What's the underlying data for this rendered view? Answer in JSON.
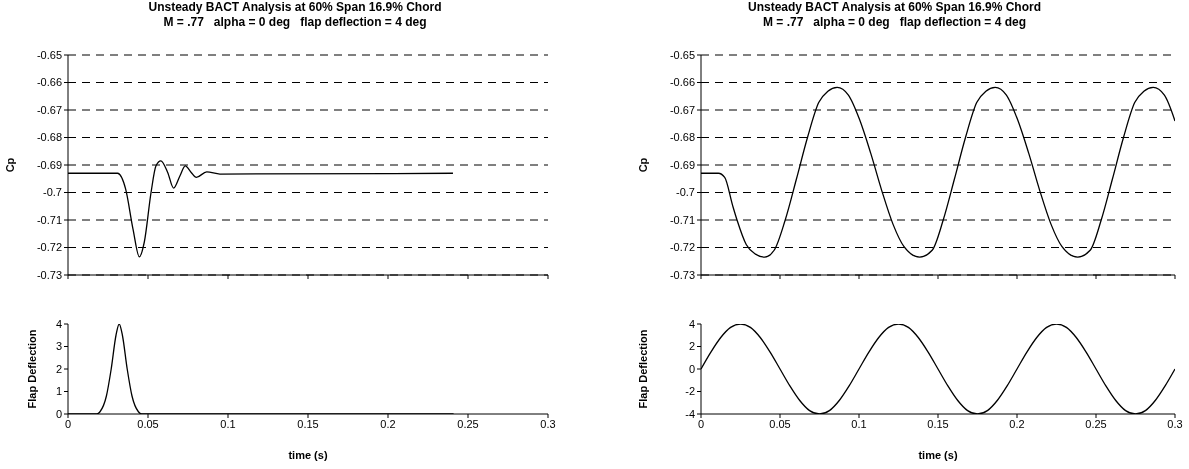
{
  "chart_data": [
    {
      "type": "line",
      "title": "Unsteady BACT Analysis at 60% Span 16.9% Chord",
      "subtitle": "M = .77   alpha = 0 deg   flap deflection = 4 deg",
      "ylabel": "Cp",
      "xlim": [
        0,
        0.3
      ],
      "xticks": [
        0,
        0.05,
        0.1,
        0.15,
        0.2,
        0.25,
        0.3
      ],
      "ylim": [
        -0.73,
        -0.65
      ],
      "yticks": [
        -0.73,
        -0.72,
        -0.71,
        -0.7,
        -0.69,
        -0.68,
        -0.67,
        -0.66,
        -0.65
      ],
      "grid": "y",
      "tick_labels": "y",
      "series": [
        {
          "color": "#000000",
          "x": [
            0,
            0.031,
            0.036,
            0.0406,
            0.0446,
            0.0477,
            0.0519,
            0.055,
            0.058,
            0.0623,
            0.066,
            0.07,
            0.0733,
            0.077,
            0.0802,
            0.0867,
            0.095,
            0.2406
          ],
          "values": [
            -0.693,
            -0.693,
            -0.6987,
            -0.7132,
            -0.7234,
            -0.718,
            -0.7,
            -0.6903,
            -0.6885,
            -0.6927,
            -0.6984,
            -0.6939,
            -0.6903,
            -0.6927,
            -0.6945,
            -0.6925,
            -0.6933,
            -0.693
          ]
        }
      ]
    },
    {
      "type": "line",
      "title": "Unsteady BACT Analysis at 60% Span 16.9% Chord",
      "subtitle": "M = .77   alpha = 0 deg   flap deflection = 4 deg",
      "ylabel": "Cp",
      "xlim": [
        0,
        0.3
      ],
      "xticks": [
        0,
        0.05,
        0.1,
        0.15,
        0.2,
        0.25,
        0.3
      ],
      "ylim": [
        -0.73,
        -0.65
      ],
      "yticks": [
        -0.73,
        -0.72,
        -0.71,
        -0.7,
        -0.69,
        -0.68,
        -0.67,
        -0.66,
        -0.65
      ],
      "grid": "y",
      "tick_labels": "y",
      "series": [
        {
          "color": "#000000",
          "x": [
            0,
            0.011,
            0.015,
            0.02,
            0.0228,
            0.0287,
            0.0345,
            0.0403,
            0.0463,
            0.0533,
            0.0604,
            0.0674,
            0.0745,
            0.0803,
            0.0862,
            0.0933,
            0.1003,
            0.1074,
            0.1144,
            0.1215,
            0.1285,
            0.1384,
            0.1463,
            0.1533,
            0.1604,
            0.1674,
            0.1745,
            0.1803,
            0.1862,
            0.1933,
            0.2003,
            0.2074,
            0.2144,
            0.2215,
            0.2285,
            0.2384,
            0.2463,
            0.2533,
            0.2604,
            0.2674,
            0.2745,
            0.2803,
            0.2862,
            0.2933,
            0.3
          ],
          "values": [
            -0.693,
            -0.693,
            -0.6945,
            -0.7047,
            -0.71,
            -0.719,
            -0.7224,
            -0.7235,
            -0.721,
            -0.71,
            -0.6951,
            -0.68,
            -0.6673,
            -0.6632,
            -0.6618,
            -0.6646,
            -0.6734,
            -0.6857,
            -0.6993,
            -0.7115,
            -0.7197,
            -0.7235,
            -0.721,
            -0.71,
            -0.6951,
            -0.68,
            -0.6673,
            -0.6632,
            -0.6618,
            -0.6646,
            -0.6734,
            -0.6857,
            -0.6993,
            -0.7115,
            -0.7197,
            -0.7235,
            -0.721,
            -0.71,
            -0.6951,
            -0.68,
            -0.6673,
            -0.6632,
            -0.6618,
            -0.6646,
            -0.674
          ]
        }
      ]
    },
    {
      "type": "line",
      "xlabel": "time (s)",
      "ylabel": "Flap Deflection",
      "xlim": [
        0,
        0.3
      ],
      "xticks": [
        0,
        0.05,
        0.1,
        0.15,
        0.2,
        0.25,
        0.3
      ],
      "ylim": [
        0,
        4
      ],
      "yticks": [
        0,
        1,
        2,
        3,
        4
      ],
      "series": [
        {
          "color": "#000000",
          "x": [
            0,
            0.018,
            0.02,
            0.024,
            0.027,
            0.03,
            0.032,
            0.034,
            0.037,
            0.04,
            0.044,
            0.046,
            0.241
          ],
          "values": [
            0,
            0,
            0.1,
            0.8,
            2,
            3.5,
            4,
            3.5,
            2,
            0.8,
            0.1,
            0,
            0
          ]
        }
      ]
    },
    {
      "type": "line",
      "xlabel": "time (s)",
      "ylabel": "Flap Deflection",
      "xlim": [
        0,
        0.3
      ],
      "xticks": [
        0,
        0.05,
        0.1,
        0.15,
        0.2,
        0.25,
        0.3
      ],
      "ylim": [
        -4,
        4
      ],
      "yticks": [
        -4,
        -2,
        0,
        2,
        4
      ],
      "series": [
        {
          "color": "#000000",
          "x": [
            0,
            0.00625,
            0.0125,
            0.01875,
            0.025,
            0.03125,
            0.0375,
            0.04375,
            0.05,
            0.05625,
            0.0625,
            0.06875,
            0.075,
            0.08125,
            0.0875,
            0.09375,
            0.1,
            0.10625,
            0.1125,
            0.11875,
            0.125,
            0.13125,
            0.1375,
            0.14375,
            0.15,
            0.15625,
            0.1625,
            0.16875,
            0.175,
            0.18125,
            0.1875,
            0.19375,
            0.2,
            0.20625,
            0.2125,
            0.21875,
            0.225,
            0.23125,
            0.2375,
            0.24375,
            0.25,
            0.25625,
            0.2625,
            0.26875,
            0.275,
            0.28125,
            0.2875,
            0.29375,
            0.3
          ],
          "values": [
            0,
            1.5,
            2.8,
            3.7,
            4,
            3.7,
            2.8,
            1.5,
            0,
            -1.5,
            -2.8,
            -3.7,
            -4,
            -3.7,
            -2.8,
            -1.5,
            0,
            1.5,
            2.8,
            3.7,
            4,
            3.7,
            2.8,
            1.5,
            0,
            -1.5,
            -2.8,
            -3.7,
            -4,
            -3.7,
            -2.8,
            -1.5,
            0,
            1.5,
            2.8,
            3.7,
            4,
            3.7,
            2.8,
            1.5,
            0,
            -1.5,
            -2.8,
            -3.7,
            -4,
            -3.7,
            -2.8,
            -1.5,
            0
          ]
        }
      ]
    }
  ]
}
